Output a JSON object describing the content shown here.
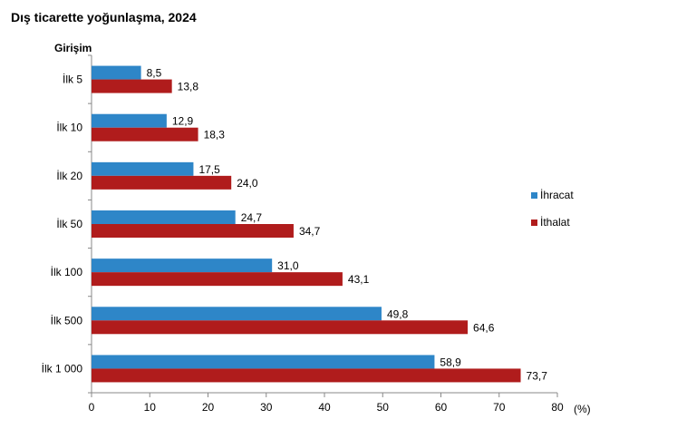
{
  "title": "Dış ticarette yoğunlaşma, 2024",
  "chart_data": {
    "type": "bar",
    "orientation": "horizontal",
    "title": "Dış ticarette yoğunlaşma, 2024",
    "ylabel": "Girişim",
    "xlabel": "(%)",
    "categories": [
      "İlk 5",
      "İlk 10",
      "İlk 20",
      "İlk 50",
      "İlk 100",
      "İlk 500",
      "İlk 1 000"
    ],
    "series": [
      {
        "name": "İhracat",
        "color": "#2e86c8",
        "values": [
          8.5,
          12.9,
          17.5,
          24.7,
          31.0,
          49.8,
          58.9
        ],
        "labels": [
          "8,5",
          "12,9",
          "17,5",
          "24,7",
          "31,0",
          "49,8",
          "58,9"
        ]
      },
      {
        "name": "İthalat",
        "color": "#b01c1c",
        "values": [
          13.8,
          18.3,
          24.0,
          34.7,
          43.1,
          64.6,
          73.7
        ],
        "labels": [
          "13,8",
          "18,3",
          "24,0",
          "34,7",
          "43,1",
          "64,6",
          "73,7"
        ]
      }
    ],
    "xlim": [
      0,
      80
    ],
    "xticks": [
      0,
      10,
      20,
      30,
      40,
      50,
      60,
      70,
      80
    ],
    "grid": false,
    "legend_position": "right"
  }
}
